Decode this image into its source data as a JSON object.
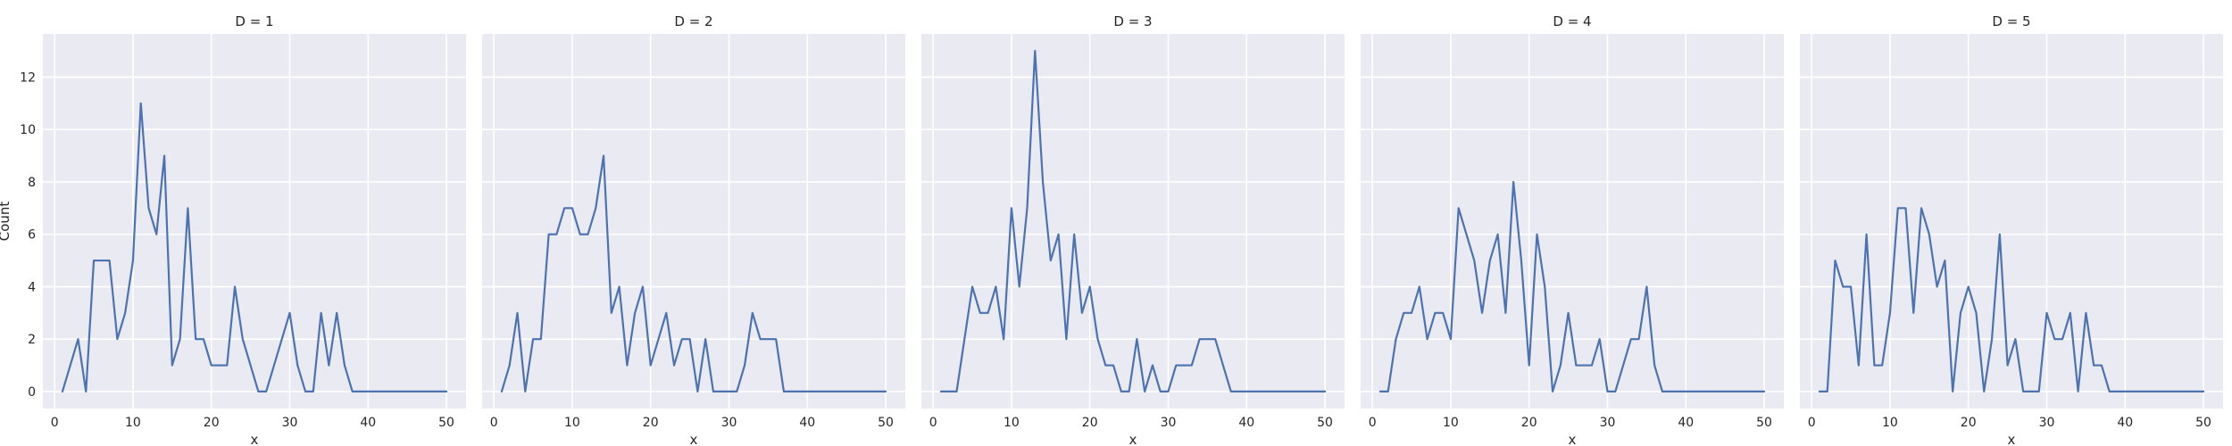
{
  "chart_data": [
    {
      "type": "line",
      "title": "D = 1",
      "xlabel": "x",
      "ylabel": "Count",
      "xlim": [
        -1.5,
        52.5
      ],
      "ylim": [
        -0.65,
        13.65
      ],
      "xticks": [
        0,
        10,
        20,
        30,
        40,
        50
      ],
      "yticks": [
        0,
        2,
        4,
        6,
        8,
        10,
        12
      ],
      "grid": true,
      "x": [
        1,
        2,
        3,
        4,
        5,
        6,
        7,
        8,
        9,
        10,
        11,
        12,
        13,
        14,
        15,
        16,
        17,
        18,
        19,
        20,
        21,
        22,
        23,
        24,
        25,
        26,
        27,
        28,
        29,
        30,
        31,
        32,
        33,
        34,
        35,
        36,
        37,
        38,
        39,
        40,
        41,
        42,
        43,
        44,
        45,
        46,
        47,
        48,
        49,
        50
      ],
      "series": [
        {
          "values": [
            0,
            1,
            2,
            0,
            5,
            5,
            5,
            2,
            3,
            5,
            11,
            7,
            6,
            9,
            1,
            2,
            7,
            2,
            2,
            1,
            1,
            1,
            4,
            2,
            1,
            0,
            0,
            1,
            2,
            3,
            1,
            0,
            0,
            3,
            1,
            3,
            1,
            0,
            0,
            0,
            0,
            0,
            0,
            0,
            0,
            0,
            0,
            0,
            0,
            0
          ]
        }
      ]
    },
    {
      "type": "line",
      "title": "D = 2",
      "xlabel": "x",
      "ylabel": "",
      "xlim": [
        -1.5,
        52.5
      ],
      "ylim": [
        -0.65,
        13.65
      ],
      "xticks": [
        0,
        10,
        20,
        30,
        40,
        50
      ],
      "yticks": [
        0,
        2,
        4,
        6,
        8,
        10,
        12
      ],
      "grid": true,
      "x": [
        1,
        2,
        3,
        4,
        5,
        6,
        7,
        8,
        9,
        10,
        11,
        12,
        13,
        14,
        15,
        16,
        17,
        18,
        19,
        20,
        21,
        22,
        23,
        24,
        25,
        26,
        27,
        28,
        29,
        30,
        31,
        32,
        33,
        34,
        35,
        36,
        37,
        38,
        39,
        40,
        41,
        42,
        43,
        44,
        45,
        46,
        47,
        48,
        49,
        50
      ],
      "series": [
        {
          "values": [
            0,
            1,
            3,
            0,
            2,
            2,
            6,
            6,
            7,
            7,
            6,
            6,
            7,
            9,
            3,
            4,
            1,
            3,
            4,
            1,
            2,
            3,
            1,
            2,
            2,
            0,
            2,
            0,
            0,
            0,
            0,
            1,
            3,
            2,
            2,
            2,
            0,
            0,
            0,
            0,
            0,
            0,
            0,
            0,
            0,
            0,
            0,
            0,
            0,
            0
          ]
        }
      ]
    },
    {
      "type": "line",
      "title": "D = 3",
      "xlabel": "x",
      "ylabel": "",
      "xlim": [
        -1.5,
        52.5
      ],
      "ylim": [
        -0.65,
        13.65
      ],
      "xticks": [
        0,
        10,
        20,
        30,
        40,
        50
      ],
      "yticks": [
        0,
        2,
        4,
        6,
        8,
        10,
        12
      ],
      "grid": true,
      "x": [
        1,
        2,
        3,
        4,
        5,
        6,
        7,
        8,
        9,
        10,
        11,
        12,
        13,
        14,
        15,
        16,
        17,
        18,
        19,
        20,
        21,
        22,
        23,
        24,
        25,
        26,
        27,
        28,
        29,
        30,
        31,
        32,
        33,
        34,
        35,
        36,
        37,
        38,
        39,
        40,
        41,
        42,
        43,
        44,
        45,
        46,
        47,
        48,
        49,
        50
      ],
      "series": [
        {
          "values": [
            0,
            0,
            0,
            2,
            4,
            3,
            3,
            4,
            2,
            7,
            4,
            7,
            13,
            8,
            5,
            6,
            2,
            6,
            3,
            4,
            2,
            1,
            1,
            0,
            0,
            2,
            0,
            1,
            0,
            0,
            1,
            1,
            1,
            2,
            2,
            2,
            1,
            0,
            0,
            0,
            0,
            0,
            0,
            0,
            0,
            0,
            0,
            0,
            0,
            0
          ]
        }
      ]
    },
    {
      "type": "line",
      "title": "D = 4",
      "xlabel": "x",
      "ylabel": "",
      "xlim": [
        -1.5,
        52.5
      ],
      "ylim": [
        -0.65,
        13.65
      ],
      "xticks": [
        0,
        10,
        20,
        30,
        40,
        50
      ],
      "yticks": [
        0,
        2,
        4,
        6,
        8,
        10,
        12
      ],
      "grid": true,
      "x": [
        1,
        2,
        3,
        4,
        5,
        6,
        7,
        8,
        9,
        10,
        11,
        12,
        13,
        14,
        15,
        16,
        17,
        18,
        19,
        20,
        21,
        22,
        23,
        24,
        25,
        26,
        27,
        28,
        29,
        30,
        31,
        32,
        33,
        34,
        35,
        36,
        37,
        38,
        39,
        40,
        41,
        42,
        43,
        44,
        45,
        46,
        47,
        48,
        49,
        50
      ],
      "series": [
        {
          "values": [
            0,
            0,
            2,
            3,
            3,
            4,
            2,
            3,
            3,
            2,
            7,
            6,
            5,
            3,
            5,
            6,
            3,
            8,
            5,
            1,
            6,
            4,
            0,
            1,
            3,
            1,
            1,
            1,
            2,
            0,
            0,
            1,
            2,
            2,
            4,
            1,
            0,
            0,
            0,
            0,
            0,
            0,
            0,
            0,
            0,
            0,
            0,
            0,
            0,
            0
          ]
        }
      ]
    },
    {
      "type": "line",
      "title": "D = 5",
      "xlabel": "x",
      "ylabel": "",
      "xlim": [
        -1.5,
        52.5
      ],
      "ylim": [
        -0.65,
        13.65
      ],
      "xticks": [
        0,
        10,
        20,
        30,
        40,
        50
      ],
      "yticks": [
        0,
        2,
        4,
        6,
        8,
        10,
        12
      ],
      "grid": true,
      "x": [
        1,
        2,
        3,
        4,
        5,
        6,
        7,
        8,
        9,
        10,
        11,
        12,
        13,
        14,
        15,
        16,
        17,
        18,
        19,
        20,
        21,
        22,
        23,
        24,
        25,
        26,
        27,
        28,
        29,
        30,
        31,
        32,
        33,
        34,
        35,
        36,
        37,
        38,
        39,
        40,
        41,
        42,
        43,
        44,
        45,
        46,
        47,
        48,
        49,
        50
      ],
      "series": [
        {
          "values": [
            0,
            0,
            5,
            4,
            4,
            1,
            6,
            1,
            1,
            3,
            7,
            7,
            3,
            7,
            6,
            4,
            5,
            0,
            3,
            4,
            3,
            0,
            2,
            6,
            1,
            2,
            0,
            0,
            0,
            3,
            2,
            2,
            3,
            0,
            3,
            1,
            1,
            0,
            0,
            0,
            0,
            0,
            0,
            0,
            0,
            0,
            0,
            0,
            0,
            0
          ]
        }
      ]
    }
  ],
  "colors": {
    "line": "#4c72b0",
    "panel_background": "#eaeaf2",
    "grid": "#ffffff",
    "text": "#262626"
  }
}
